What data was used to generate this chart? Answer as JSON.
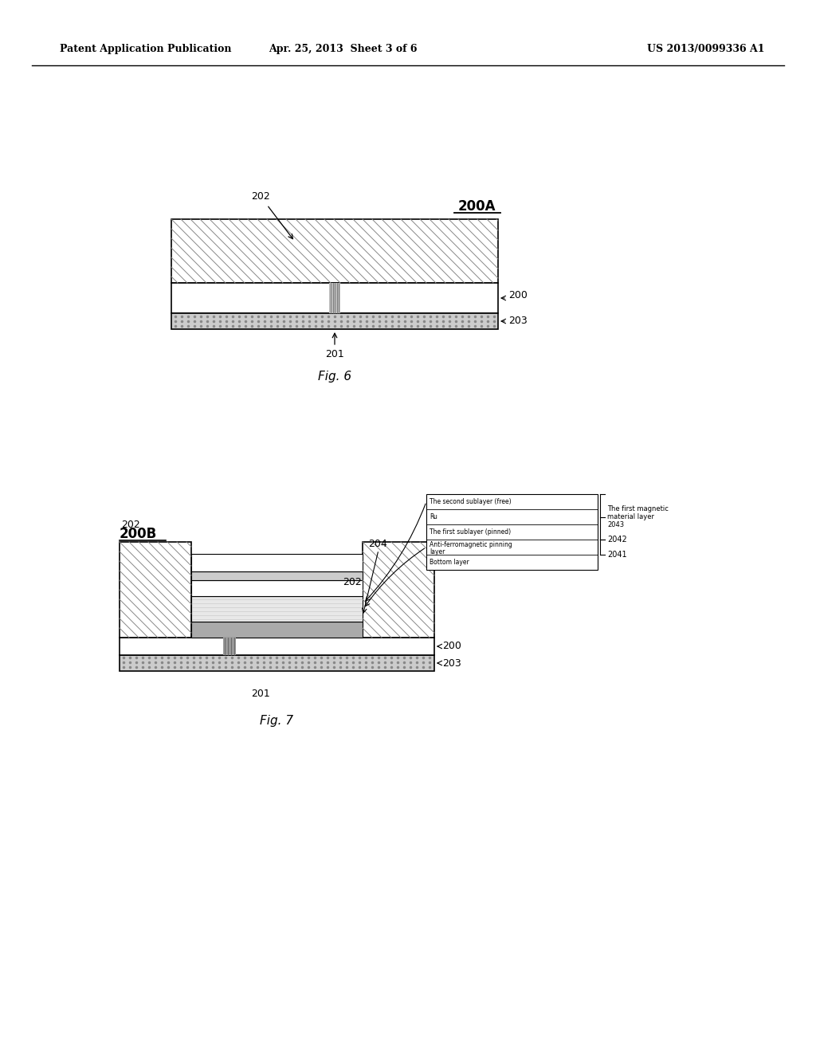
{
  "header_left": "Patent Application Publication",
  "header_mid": "Apr. 25, 2013  Sheet 3 of 6",
  "header_right": "US 2013/0099336 A1",
  "fig6_label": "Fig. 6",
  "fig7_label": "Fig. 7",
  "fig6_title": "200A",
  "fig7_title": "200B",
  "bg_color": "#ffffff",
  "line_color": "#000000",
  "box_text_line1": "The second sublayer (free)",
  "box_text_line2": "Ru",
  "box_text_line3": "The first sublayer (pinned)",
  "box_text_line4": "Anti-ferromagnetic pinning",
  "box_text_line4b": "layer",
  "box_text_line5": "Bottom layer",
  "brace_text": "The first magnetic\nmaterial layer\n2043",
  "label_2041": "2041",
  "label_2042": "2042"
}
